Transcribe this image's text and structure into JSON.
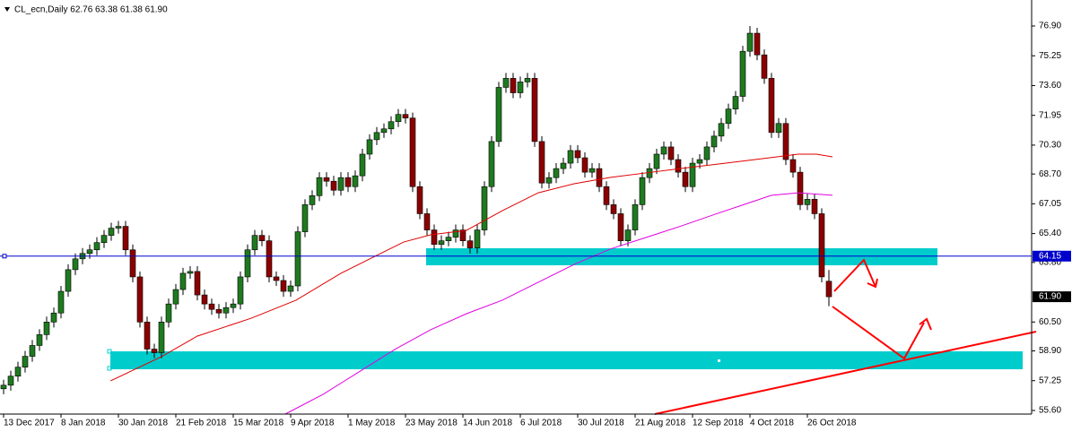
{
  "chart_data": {
    "type": "candlestick",
    "title": "CL_ecn,Daily  62.76 63.38 61.38 61.90",
    "up_color": "#1f7a1f",
    "down_color": "#8b0000",
    "xlim": [
      -0.5,
      143.25
    ],
    "ylim": [
      55.4,
      78.34
    ],
    "x": [
      0,
      1,
      2,
      3,
      4,
      5,
      6,
      7,
      8,
      9,
      10,
      11,
      12,
      13,
      14,
      15,
      16,
      17,
      18,
      19,
      20,
      21,
      22,
      23,
      24,
      25,
      26,
      27,
      28,
      29,
      30,
      31,
      32,
      33,
      34,
      35,
      36,
      37,
      38,
      39,
      40,
      41,
      42,
      43,
      44,
      45,
      46,
      47,
      48,
      49,
      50,
      51,
      52,
      53,
      54,
      55,
      56,
      57,
      58,
      59,
      60,
      61,
      62,
      63,
      64,
      65,
      66,
      67,
      68,
      69,
      70,
      71,
      72,
      73,
      74,
      75,
      76,
      77,
      78,
      79,
      80,
      81,
      82,
      83,
      84,
      85,
      86,
      87,
      88,
      89,
      90,
      91,
      92,
      93,
      94,
      95,
      96,
      97,
      98,
      99,
      100,
      101,
      102,
      103,
      104,
      105,
      106,
      107,
      108,
      109,
      110,
      111,
      112,
      113,
      114,
      115
    ],
    "open": [
      56.8,
      57.0,
      57.5,
      58.0,
      58.6,
      59.2,
      59.8,
      60.5,
      61.0,
      62.2,
      63.4,
      64.0,
      64.3,
      64.5,
      64.9,
      65.3,
      65.7,
      65.8,
      64.5,
      63.0,
      60.5,
      59.0,
      58.8,
      60.5,
      61.5,
      62.3,
      63.2,
      63.3,
      62.0,
      61.5,
      61.2,
      61.0,
      61.3,
      61.5,
      63.0,
      64.5,
      65.3,
      65.0,
      63.0,
      62.8,
      62.2,
      62.5,
      65.5,
      67.0,
      67.5,
      68.5,
      68.3,
      67.8,
      68.5,
      68.0,
      68.6,
      69.8,
      70.6,
      71.0,
      71.2,
      71.6,
      72.0,
      71.8,
      68.0,
      66.5,
      65.6,
      64.8,
      65.0,
      65.2,
      65.6,
      65.0,
      64.6,
      65.6,
      68.0,
      70.5,
      73.5,
      74.0,
      73.2,
      73.8,
      74.0,
      70.5,
      68.2,
      68.5,
      69.0,
      69.3,
      70.0,
      69.6,
      68.8,
      69.0,
      68.0,
      67.0,
      66.5,
      65.0,
      65.6,
      67.0,
      68.5,
      69.0,
      69.8,
      70.2,
      69.5,
      68.8,
      68.0,
      69.3,
      69.5,
      70.2,
      70.8,
      71.5,
      72.3,
      73.0,
      75.5,
      76.5,
      75.3,
      74.0,
      71.0,
      71.5,
      69.5,
      68.8,
      67.0,
      67.3,
      66.5,
      62.76
    ],
    "high": [
      57.3,
      57.8,
      58.3,
      58.9,
      59.5,
      60.1,
      60.8,
      61.3,
      62.5,
      63.7,
      64.3,
      64.6,
      64.8,
      65.2,
      65.6,
      66.0,
      66.1,
      66.1,
      64.8,
      63.3,
      60.8,
      59.3,
      60.8,
      61.8,
      62.6,
      63.5,
      63.6,
      63.6,
      62.3,
      61.8,
      61.5,
      61.6,
      61.8,
      63.3,
      64.8,
      65.6,
      65.6,
      65.3,
      63.3,
      63.1,
      62.8,
      65.8,
      67.3,
      67.8,
      68.8,
      68.8,
      68.6,
      68.8,
      68.8,
      68.9,
      70.1,
      70.9,
      71.3,
      71.5,
      71.9,
      72.3,
      72.3,
      72.1,
      68.3,
      66.8,
      65.9,
      65.3,
      65.5,
      65.9,
      65.9,
      65.3,
      65.9,
      68.3,
      70.8,
      73.8,
      74.3,
      74.3,
      74.1,
      74.3,
      74.3,
      70.8,
      68.8,
      69.3,
      69.6,
      70.3,
      70.3,
      69.9,
      69.3,
      69.3,
      68.3,
      67.3,
      66.8,
      65.9,
      67.3,
      68.8,
      69.3,
      70.1,
      70.5,
      70.5,
      69.8,
      69.1,
      69.6,
      69.8,
      70.5,
      71.1,
      71.8,
      72.6,
      73.3,
      75.8,
      76.9,
      76.8,
      75.6,
      74.3,
      71.8,
      71.8,
      69.8,
      69.1,
      67.6,
      67.6,
      66.8,
      63.38
    ],
    "low": [
      56.5,
      56.7,
      57.2,
      57.7,
      58.3,
      58.9,
      59.5,
      60.2,
      60.7,
      61.9,
      63.1,
      63.7,
      64.0,
      64.2,
      64.6,
      65.0,
      65.4,
      64.2,
      62.7,
      60.2,
      58.7,
      58.5,
      58.5,
      60.2,
      61.2,
      62.0,
      62.9,
      61.7,
      61.2,
      60.9,
      60.7,
      60.7,
      61.0,
      61.2,
      62.7,
      64.2,
      64.7,
      62.7,
      62.5,
      61.9,
      61.9,
      62.2,
      65.2,
      66.7,
      67.2,
      68.0,
      67.5,
      67.5,
      67.7,
      67.7,
      68.3,
      69.5,
      70.3,
      70.7,
      70.9,
      71.3,
      71.5,
      67.7,
      66.2,
      65.3,
      64.5,
      64.5,
      64.7,
      64.9,
      64.7,
      64.3,
      64.3,
      65.3,
      67.7,
      70.2,
      73.2,
      72.9,
      72.9,
      73.5,
      70.2,
      67.9,
      67.9,
      68.2,
      68.7,
      69.0,
      69.3,
      68.5,
      68.5,
      67.7,
      66.7,
      66.2,
      64.7,
      64.7,
      65.3,
      66.7,
      68.2,
      68.7,
      69.5,
      69.2,
      68.5,
      67.7,
      67.7,
      69.0,
      69.2,
      69.9,
      70.5,
      71.2,
      72.0,
      72.7,
      75.2,
      75.0,
      73.7,
      70.7,
      70.7,
      69.2,
      68.5,
      66.7,
      66.7,
      66.2,
      62.7,
      61.38
    ],
    "close": [
      57.0,
      57.5,
      58.0,
      58.6,
      59.2,
      59.8,
      60.5,
      61.0,
      62.2,
      63.4,
      64.0,
      64.3,
      64.5,
      64.9,
      65.3,
      65.7,
      65.8,
      64.5,
      63.0,
      60.5,
      59.0,
      58.8,
      60.5,
      61.5,
      62.3,
      63.2,
      63.3,
      62.0,
      61.5,
      61.2,
      61.0,
      61.3,
      61.5,
      63.0,
      64.5,
      65.3,
      65.0,
      63.0,
      62.8,
      62.2,
      62.5,
      65.5,
      67.0,
      67.5,
      68.5,
      68.3,
      67.8,
      68.5,
      68.0,
      68.6,
      69.8,
      70.6,
      71.0,
      71.2,
      71.6,
      72.0,
      71.8,
      68.0,
      66.5,
      65.6,
      64.8,
      65.0,
      65.2,
      65.6,
      65.0,
      64.6,
      65.6,
      68.0,
      70.5,
      73.5,
      74.0,
      73.2,
      73.8,
      74.0,
      70.5,
      68.2,
      68.5,
      69.0,
      69.3,
      70.0,
      69.6,
      68.8,
      69.0,
      68.0,
      67.0,
      66.5,
      65.0,
      65.6,
      67.0,
      68.5,
      69.0,
      69.8,
      70.2,
      69.5,
      68.8,
      68.0,
      69.3,
      69.5,
      70.2,
      70.8,
      71.5,
      72.3,
      73.0,
      75.5,
      76.5,
      75.3,
      74.0,
      71.0,
      71.5,
      69.5,
      68.8,
      67.0,
      67.3,
      66.5,
      63.0,
      61.9
    ],
    "lines": [
      {
        "color": "#e00000",
        "x": [
          14.9,
          22,
          27,
          34.5,
          40.75,
          47,
          52,
          55.75,
          59.5,
          64.5,
          69.5,
          74.5,
          79.5,
          84.5,
          89.5,
          94.5,
          99.5,
          105.75,
          110.75,
          113.25,
          115.5
        ],
        "values": [
          57.24,
          58.58,
          59.72,
          60.71,
          61.71,
          63.2,
          64.19,
          64.93,
          65.33,
          65.58,
          66.67,
          67.66,
          68.16,
          68.51,
          68.76,
          69.01,
          69.25,
          69.55,
          69.8,
          69.8,
          69.65
        ]
      },
      {
        "color": "#e000e0",
        "x": [
          39.25,
          44.5,
          49.5,
          54.5,
          59.5,
          64.5,
          69.5,
          74.5,
          79.5,
          84.5,
          89.5,
          94.5,
          99.5,
          103.25,
          107,
          110.75,
          115.5
        ],
        "values": [
          55.4,
          56.49,
          57.73,
          58.98,
          60.07,
          60.96,
          61.71,
          62.7,
          63.69,
          64.54,
          65.18,
          65.83,
          66.52,
          67.02,
          67.52,
          67.66,
          67.52
        ]
      }
    ],
    "level": {
      "value": 64.15,
      "label": "64.15",
      "color": "#0000cc"
    },
    "last_price": {
      "value": 61.9,
      "label": "61.90"
    },
    "yticks": [
      {
        "value": 76.9,
        "label": "76.90"
      },
      {
        "value": 75.25,
        "label": "75.25"
      },
      {
        "value": 73.6,
        "label": "73.60"
      },
      {
        "value": 71.95,
        "label": "71.95"
      },
      {
        "value": 70.3,
        "label": "70.30"
      },
      {
        "value": 68.7,
        "label": "68.70"
      },
      {
        "value": 67.05,
        "label": "67.05"
      },
      {
        "value": 65.4,
        "label": "65.40"
      },
      {
        "value": 63.8,
        "label": "63.80"
      },
      {
        "value": 60.5,
        "label": "60.50"
      },
      {
        "value": 58.9,
        "label": "58.90"
      },
      {
        "value": 57.25,
        "label": "57.25"
      },
      {
        "value": 55.6,
        "label": "55.60"
      }
    ],
    "xticks": [
      {
        "value": 0,
        "label": "13 Dec 2017"
      },
      {
        "value": 8,
        "label": "8 Jan 2018"
      },
      {
        "value": 16,
        "label": "30 Jan 2018"
      },
      {
        "value": 24,
        "label": "21 Feb 2018"
      },
      {
        "value": 32,
        "label": "15 Mar 2018"
      },
      {
        "value": 40,
        "label": "9 Apr 2018"
      },
      {
        "value": 48,
        "label": "1 May 2018"
      },
      {
        "value": 56,
        "label": "23 May 2018"
      },
      {
        "value": 64,
        "label": "14 Jun 2018"
      },
      {
        "value": 72,
        "label": "6 Jul 2018"
      },
      {
        "value": 80,
        "label": "30 Jul 2018"
      },
      {
        "value": 88,
        "label": "21 Aug 2018"
      },
      {
        "value": 96,
        "label": "12 Sep 2018"
      },
      {
        "value": 104,
        "label": "4 Oct 2018"
      },
      {
        "value": 112,
        "label": "26 Oct 2018"
      }
    ]
  }
}
